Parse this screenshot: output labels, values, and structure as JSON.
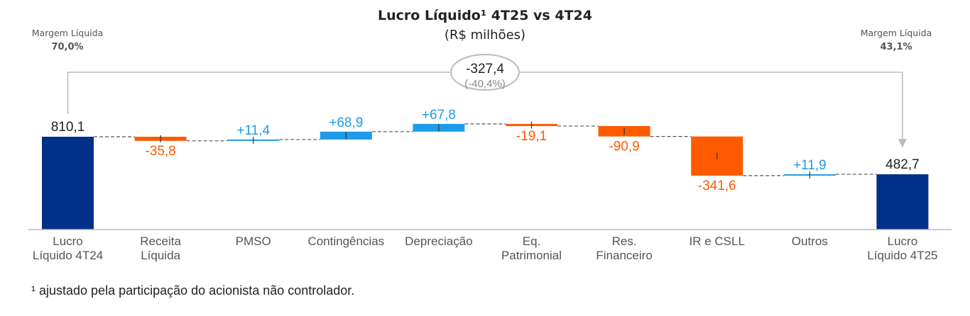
{
  "chart_data": {
    "type": "waterfall",
    "title": "Lucro Líquido¹ 4T25 vs 4T24",
    "subtitle": "(R$ milhões)",
    "categories": [
      [
        "Lucro",
        "Líquido 4T24"
      ],
      [
        "Receita",
        "Líquida"
      ],
      [
        "PMSO"
      ],
      [
        "Contingências"
      ],
      [
        "Depreciação"
      ],
      [
        "Eq.",
        "Patrimonial"
      ],
      [
        "Res.",
        "Financeiro"
      ],
      [
        "IR e CSLL"
      ],
      [
        "Outros"
      ],
      [
        "Lucro",
        "Líquido 4T25"
      ]
    ],
    "values": [
      810.1,
      -35.8,
      11.4,
      68.9,
      67.8,
      -19.1,
      -90.9,
      -341.6,
      11.9,
      482.7
    ],
    "labels": [
      "810,1",
      "-35,8",
      "+11,4",
      "+68,9",
      "+67,8",
      "-19,1",
      "-90,9",
      "-341,6",
      "+11,9",
      "482,7"
    ],
    "bar_kinds": [
      "total",
      "delta",
      "delta",
      "delta",
      "delta",
      "delta",
      "delta",
      "delta",
      "delta",
      "total"
    ],
    "ylim": [
      0,
      900
    ],
    "colors": {
      "total": "#003087",
      "positive": "#1e9ae8",
      "negative": "#ff5a00",
      "total_label": "#222222"
    },
    "margins": {
      "left": {
        "label": "Margem Líquida",
        "value": "70,0%"
      },
      "right": {
        "label": "Margem Líquida",
        "value": "43,1%"
      }
    },
    "variation": {
      "value": "-327,4",
      "percent": "(-40,4%)"
    }
  },
  "footnote": "¹ ajustado pela participação do acionista não controlador."
}
